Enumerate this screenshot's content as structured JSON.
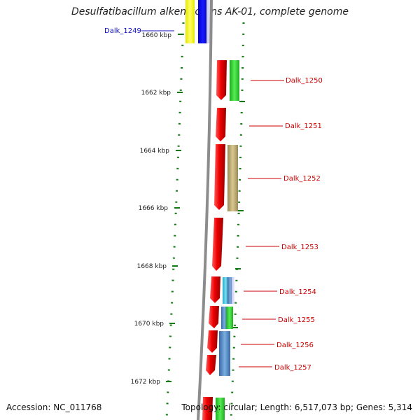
{
  "title": "Desulfatibacillum alkenivorans AK-01, complete genome",
  "accession": "Accession: NC_011768",
  "summary": "Topology: circular; Length: 6,517,073 bp; Genes: 5,314",
  "colors": {
    "strand_forward": "#e8000c",
    "tick": "#127a12",
    "backbone": "#888888",
    "label_highlight": "#1010c0",
    "label_default": "#cc0000"
  },
  "ticks": [
    {
      "label": "1660 kbp"
    },
    {
      "label": "1662 kbp"
    },
    {
      "label": "1664 kbp"
    },
    {
      "label": "1666 kbp"
    },
    {
      "label": "1668 kbp"
    },
    {
      "label": "1670 kbp"
    },
    {
      "label": "1672 kbp"
    }
  ],
  "genes": [
    {
      "label": "Dalk_1249",
      "highlight": true
    },
    {
      "label": "Dalk_1250"
    },
    {
      "label": "Dalk_1251"
    },
    {
      "label": "Dalk_1252"
    },
    {
      "label": "Dalk_1253"
    },
    {
      "label": "Dalk_1254"
    },
    {
      "label": "Dalk_1255"
    },
    {
      "label": "Dalk_1256"
    },
    {
      "label": "Dalk_1257"
    }
  ]
}
